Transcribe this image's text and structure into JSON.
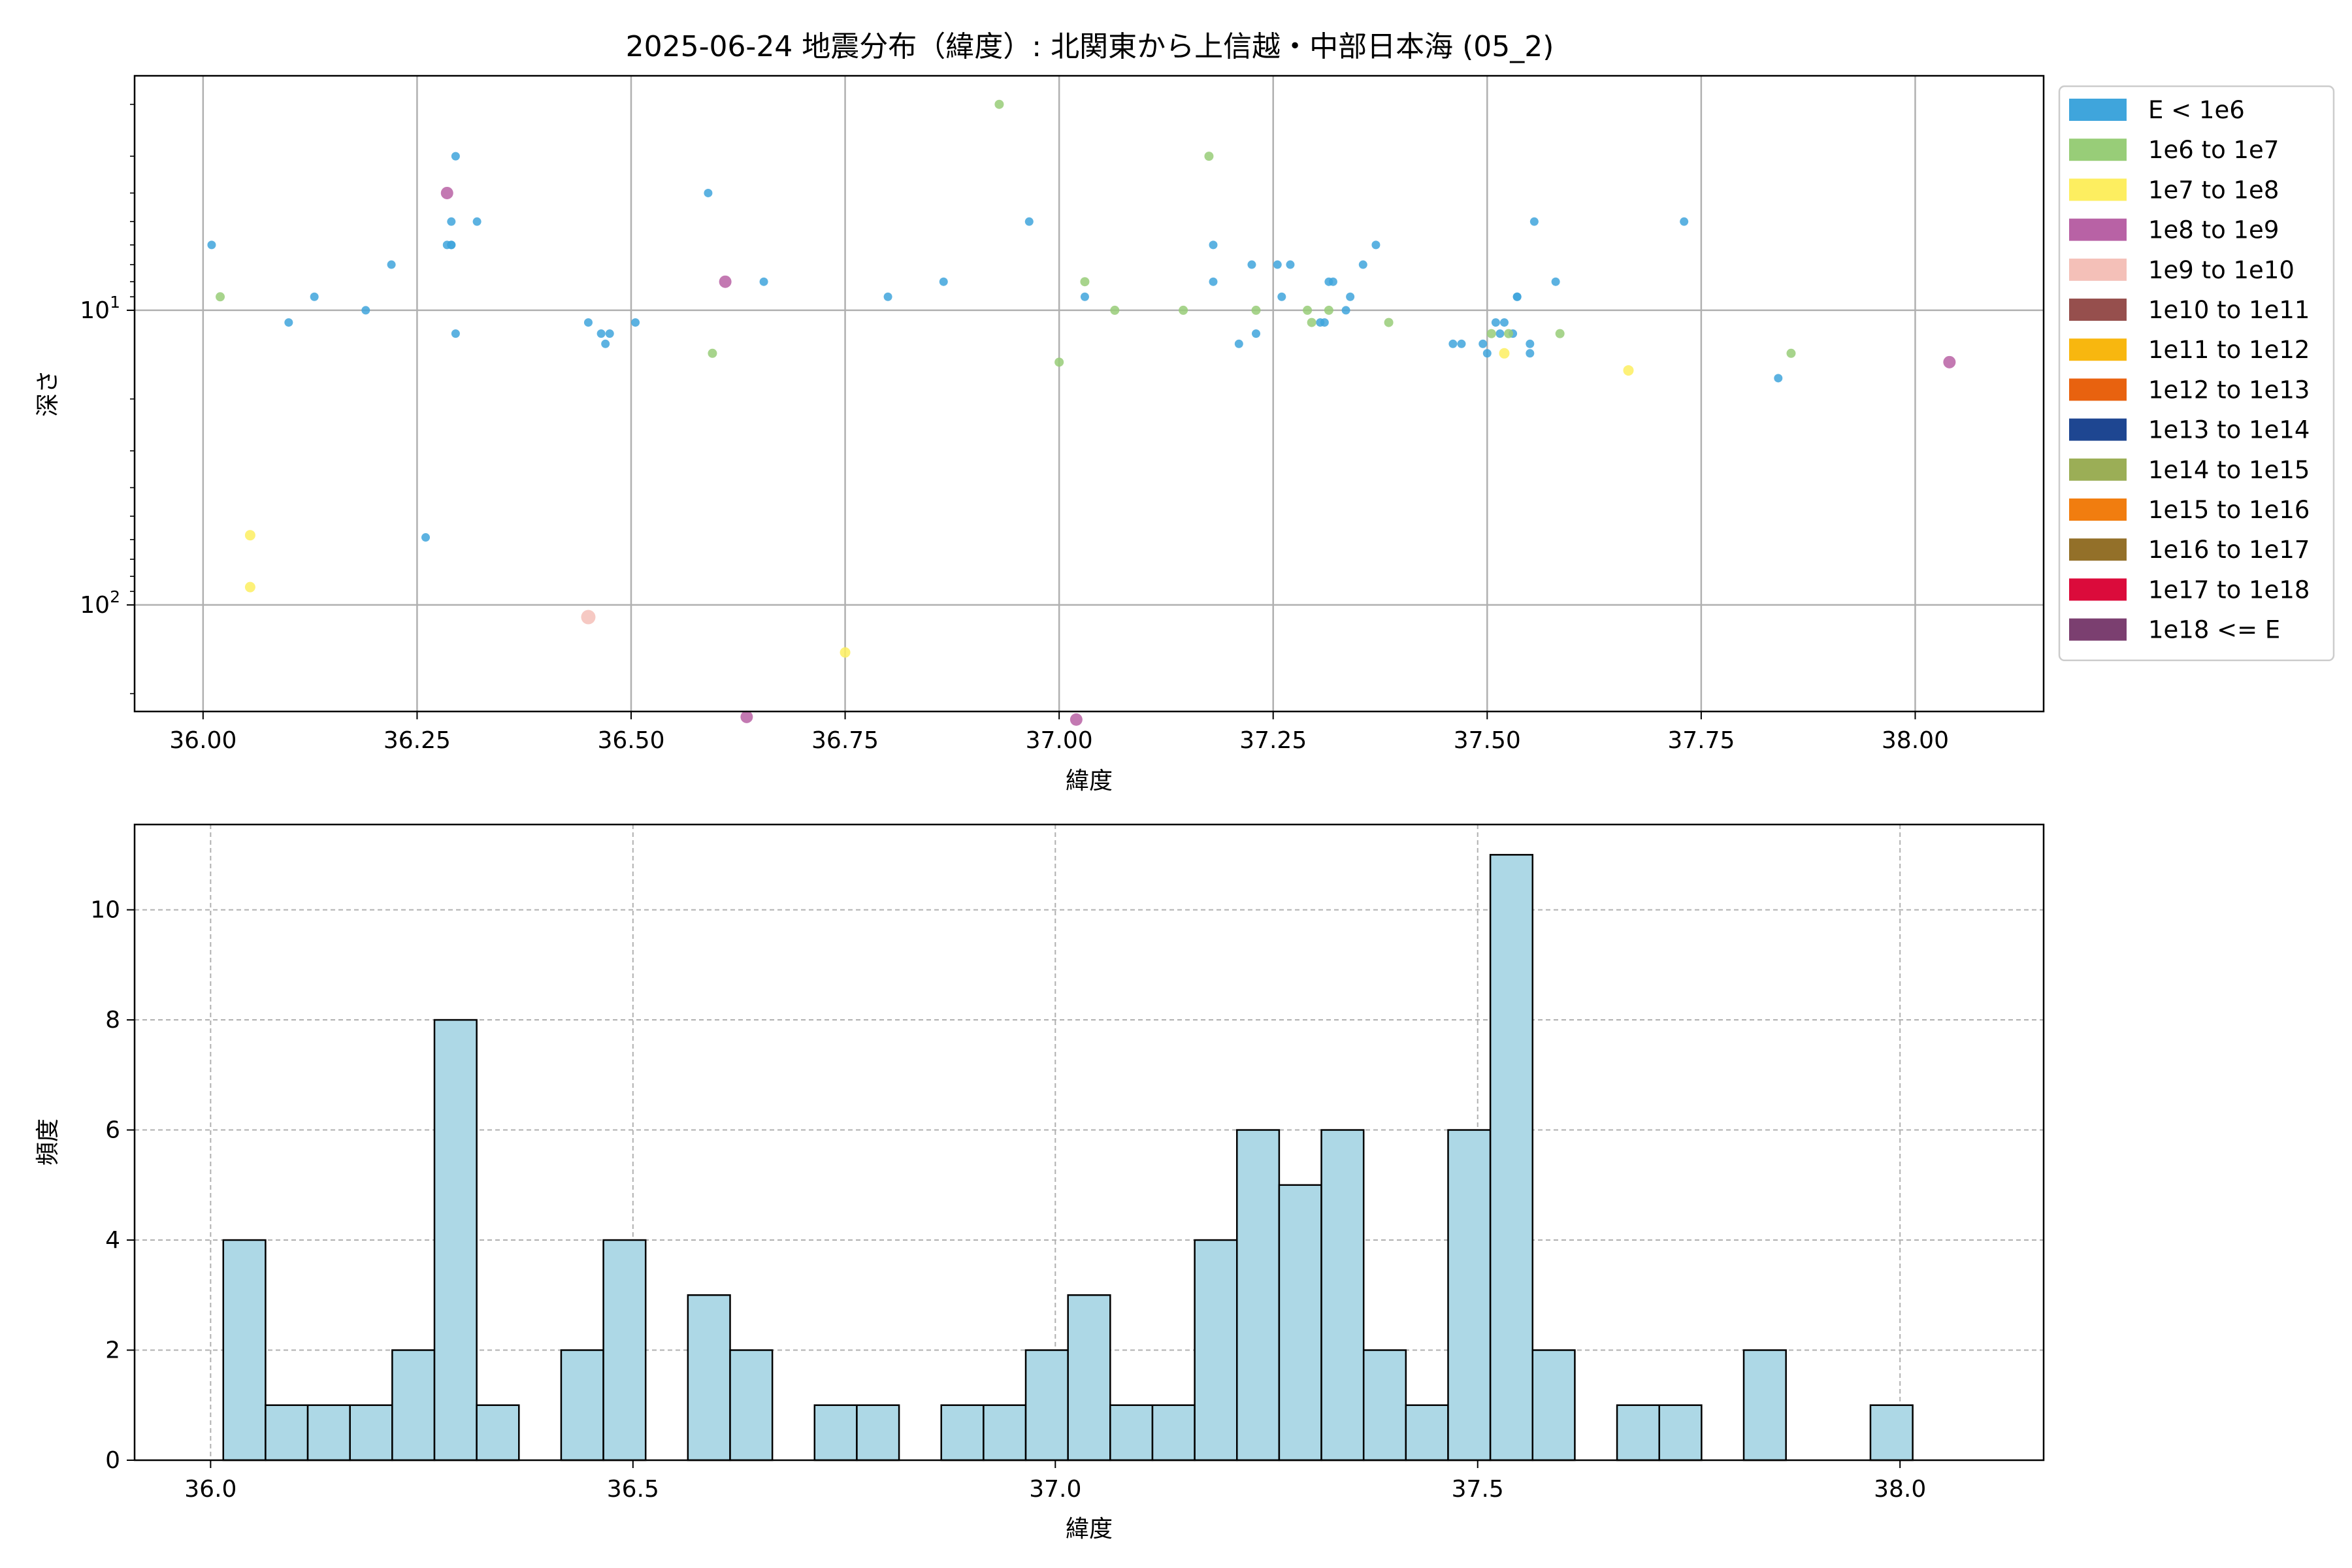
{
  "figure": {
    "title": "2025-06-24 地震分布（緯度）: 北関東から上信越・中部日本海 (05_2)"
  },
  "chart_data": [
    {
      "type": "scatter",
      "xlabel": "緯度",
      "ylabel": "深さ",
      "xlim": [
        35.92,
        38.15
      ],
      "ylim": [
        230,
        1.6
      ],
      "y_scale": "log",
      "y_inverted": true,
      "grid": true,
      "legend_placement": "outside-right",
      "x_ticks": [
        "36.00",
        "36.25",
        "36.50",
        "36.75",
        "37.00",
        "37.25",
        "37.50",
        "37.75",
        "38.00"
      ],
      "x_tick_values": [
        36.0,
        36.25,
        36.5,
        36.75,
        37.0,
        37.25,
        37.5,
        37.75,
        38.0
      ],
      "y_ticks": [
        {
          "value": 10,
          "base": "10",
          "exp": "1"
        },
        {
          "value": 100,
          "base": "10",
          "exp": "2"
        }
      ],
      "legend": [
        {
          "label": "E < 1e6",
          "color": "#3fa5dc"
        },
        {
          "label": "1e6 to 1e7",
          "color": "#98cd78"
        },
        {
          "label": "1e7 to 1e8",
          "color": "#fdee60"
        },
        {
          "label": "1e8 to 1e9",
          "color": "#b862a5"
        },
        {
          "label": "1e9 to 1e10",
          "color": "#f4c0b8"
        },
        {
          "label": "1e10 to 1e11",
          "color": "#964f4d"
        },
        {
          "label": "1e11 to 1e12",
          "color": "#f8b70f"
        },
        {
          "label": "1e12 to 1e13",
          "color": "#e8620f"
        },
        {
          "label": "1e13 to 1e14",
          "color": "#1e4691"
        },
        {
          "label": "1e14 to 1e15",
          "color": "#9bae56"
        },
        {
          "label": "1e15 to 1e16",
          "color": "#f17d0f"
        },
        {
          "label": "1e16 to 1e17",
          "color": "#937029"
        },
        {
          "label": "1e17 to 1e18",
          "color": "#db0b3b"
        },
        {
          "label": "1e18 <= E",
          "color": "#7b3f70"
        }
      ],
      "series": [
        {
          "class": 0,
          "points": [
            [
              36.01,
              6
            ],
            [
              36.1,
              11
            ],
            [
              36.13,
              9
            ],
            [
              36.19,
              10
            ],
            [
              36.22,
              7
            ],
            [
              36.26,
              59
            ],
            [
              36.285,
              6
            ],
            [
              36.29,
              6
            ],
            [
              36.29,
              6
            ],
            [
              36.29,
              5
            ],
            [
              36.295,
              12
            ],
            [
              36.295,
              3
            ],
            [
              36.32,
              5
            ],
            [
              36.45,
              11
            ],
            [
              36.465,
              12
            ],
            [
              36.47,
              13
            ],
            [
              36.475,
              12
            ],
            [
              36.505,
              11
            ],
            [
              36.59,
              4
            ],
            [
              36.655,
              8
            ],
            [
              36.8,
              9
            ],
            [
              36.865,
              8
            ],
            [
              36.965,
              5
            ],
            [
              37.03,
              9
            ],
            [
              37.18,
              8
            ],
            [
              37.18,
              6
            ],
            [
              37.21,
              13
            ],
            [
              37.225,
              7
            ],
            [
              37.23,
              12
            ],
            [
              37.255,
              7
            ],
            [
              37.26,
              9
            ],
            [
              37.27,
              7
            ],
            [
              37.305,
              11
            ],
            [
              37.31,
              11
            ],
            [
              37.315,
              8
            ],
            [
              37.32,
              8
            ],
            [
              37.335,
              10
            ],
            [
              37.34,
              9
            ],
            [
              37.355,
              7
            ],
            [
              37.37,
              6
            ],
            [
              37.46,
              13
            ],
            [
              37.47,
              13
            ],
            [
              37.495,
              13
            ],
            [
              37.5,
              14
            ],
            [
              37.51,
              11
            ],
            [
              37.515,
              12
            ],
            [
              37.52,
              11
            ],
            [
              37.53,
              12
            ],
            [
              37.535,
              9
            ],
            [
              37.535,
              9
            ],
            [
              37.55,
              14
            ],
            [
              37.55,
              13
            ],
            [
              37.555,
              5
            ],
            [
              37.58,
              8
            ],
            [
              37.73,
              5
            ],
            [
              37.84,
              17
            ]
          ]
        },
        {
          "class": 1,
          "points": [
            [
              36.02,
              9
            ],
            [
              36.595,
              14
            ],
            [
              36.93,
              2
            ],
            [
              37.0,
              15
            ],
            [
              37.03,
              8
            ],
            [
              37.065,
              10
            ],
            [
              37.145,
              10
            ],
            [
              37.175,
              3
            ],
            [
              37.23,
              10
            ],
            [
              37.29,
              10
            ],
            [
              37.295,
              11
            ],
            [
              37.315,
              10
            ],
            [
              37.385,
              11
            ],
            [
              37.505,
              12
            ],
            [
              37.525,
              12
            ],
            [
              37.585,
              12
            ],
            [
              37.855,
              14
            ]
          ]
        },
        {
          "class": 2,
          "points": [
            [
              36.055,
              58
            ],
            [
              36.055,
              87
            ],
            [
              36.75,
              145
            ],
            [
              37.52,
              14
            ],
            [
              37.665,
              16
            ]
          ]
        },
        {
          "class": 3,
          "points": [
            [
              36.285,
              4
            ],
            [
              36.61,
              8
            ],
            [
              36.635,
              240
            ],
            [
              37.02,
              245
            ],
            [
              38.04,
              15
            ]
          ]
        },
        {
          "class": 4,
          "points": [
            [
              36.45,
              110
            ]
          ]
        }
      ]
    },
    {
      "type": "bar",
      "subtype": "histogram",
      "xlabel": "緯度",
      "ylabel": "頻度",
      "xlim": [
        35.91,
        38.17
      ],
      "ylim": [
        0,
        11.55
      ],
      "grid": true,
      "bar_color": "#add8e6",
      "edge_color": "#000000",
      "x_ticks": [
        "36.0",
        "36.5",
        "37.0",
        "37.5",
        "38.0"
      ],
      "x_tick_values": [
        36.0,
        36.5,
        37.0,
        37.5,
        38.0
      ],
      "y_ticks": [
        "0",
        "2",
        "4",
        "6",
        "8",
        "10"
      ],
      "y_tick_values": [
        0,
        2,
        4,
        6,
        8,
        10
      ],
      "bin_start": 36.015,
      "bin_width": 0.05,
      "values": [
        4,
        1,
        1,
        1,
        2,
        8,
        1,
        0,
        2,
        4,
        0,
        3,
        2,
        0,
        1,
        1,
        0,
        1,
        1,
        2,
        3,
        1,
        1,
        4,
        6,
        5,
        6,
        2,
        1,
        6,
        11,
        2,
        0,
        1,
        1,
        0,
        2,
        0,
        0,
        1
      ]
    }
  ]
}
